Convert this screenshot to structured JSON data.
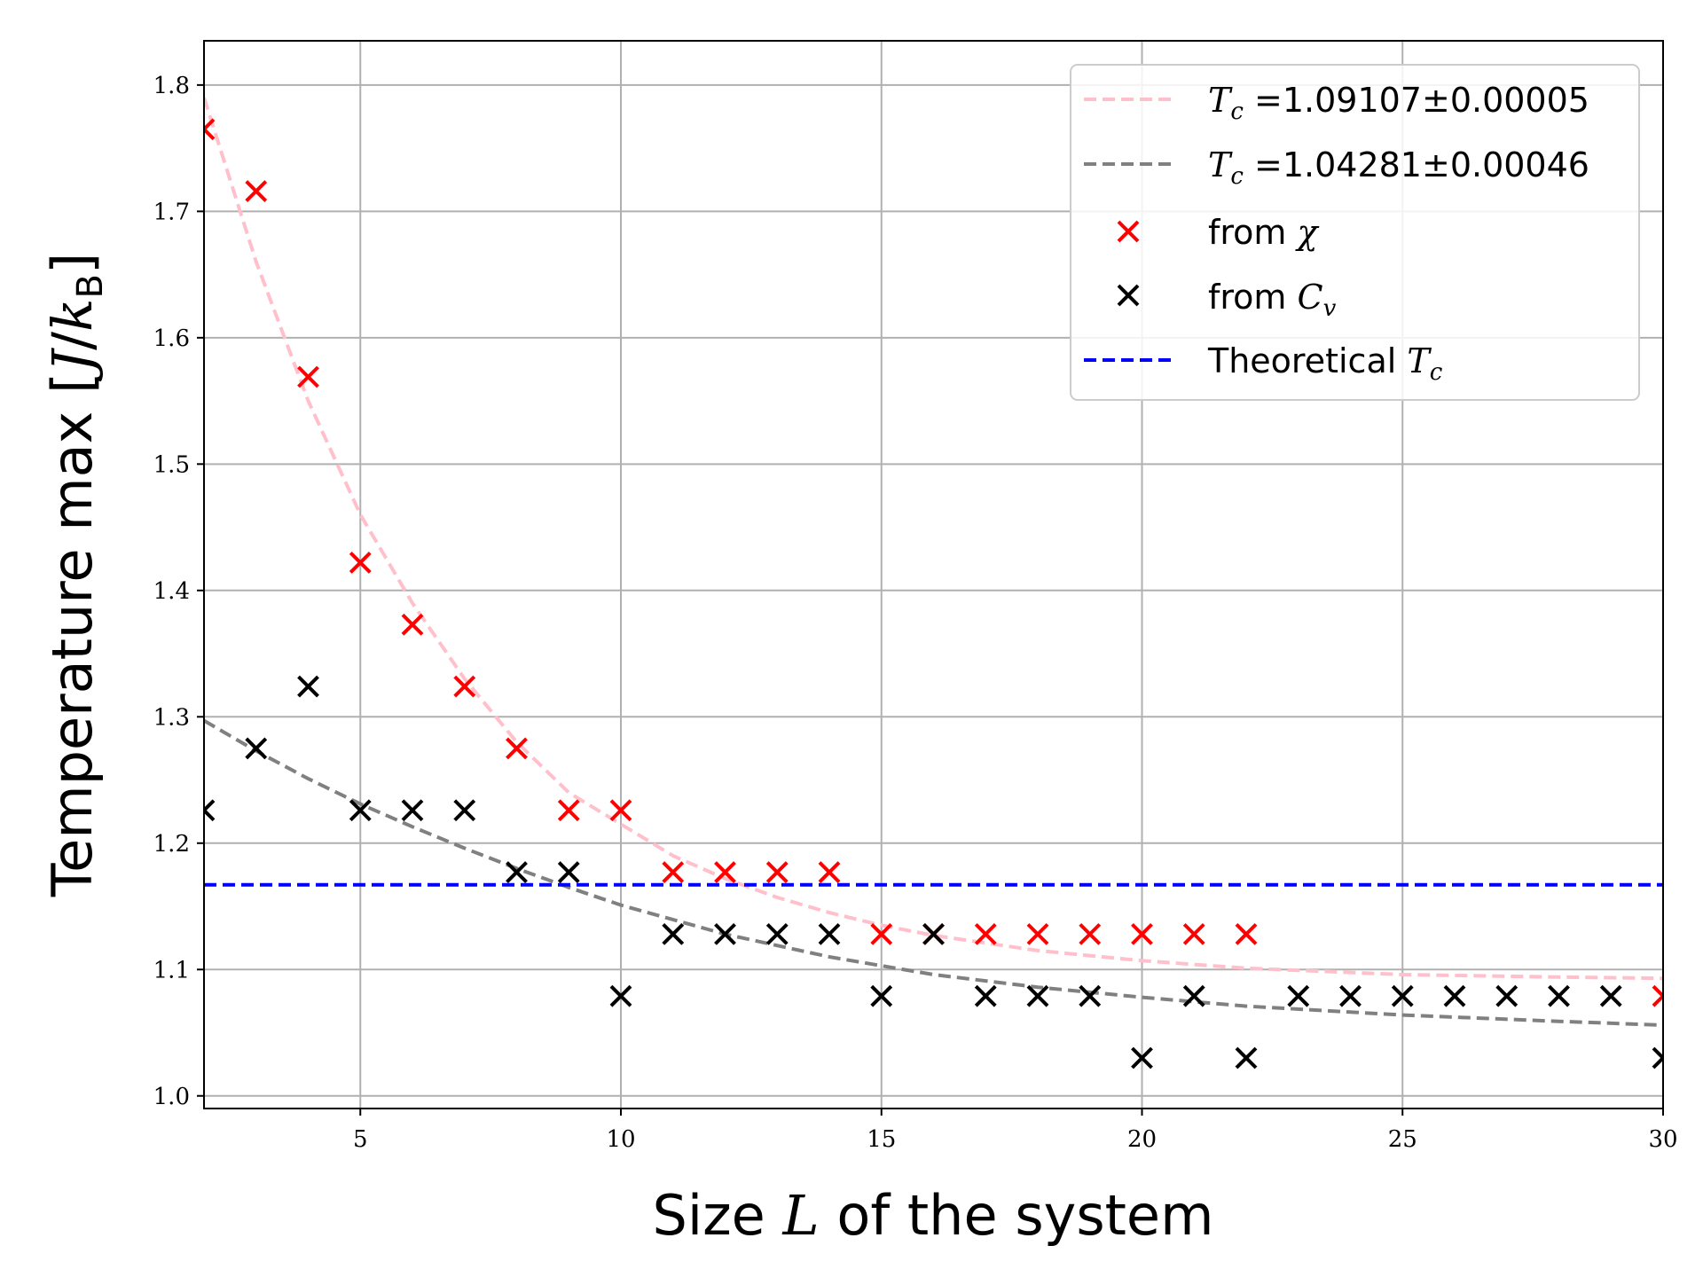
{
  "chart_data": {
    "type": "scatter",
    "xlabel": "Size L of the system",
    "ylabel": "Temperature max [J/k_B]",
    "xlim": [
      2,
      30
    ],
    "ylim": [
      0.99,
      1.835
    ],
    "grid": true,
    "legend_position": "top-right",
    "xticks": [
      5,
      10,
      15,
      20,
      25,
      30
    ],
    "yticks": [
      1.0,
      1.1,
      1.2,
      1.3,
      1.4,
      1.5,
      1.6,
      1.7,
      1.8
    ],
    "series": [
      {
        "name": "from χ",
        "kind": "scatter",
        "marker": "x",
        "color": "#ff0000",
        "x": [
          2,
          3,
          4,
          5,
          6,
          7,
          8,
          9,
          10,
          11,
          12,
          13,
          14,
          15,
          16,
          17,
          18,
          19,
          20,
          21,
          22,
          30
        ],
        "y": [
          1.765,
          1.716,
          1.569,
          1.422,
          1.373,
          1.324,
          1.275,
          1.226,
          1.226,
          1.177,
          1.177,
          1.177,
          1.177,
          1.128,
          1.128,
          1.128,
          1.128,
          1.128,
          1.128,
          1.128,
          1.128,
          1.079
        ]
      },
      {
        "name": "from C_v",
        "kind": "scatter",
        "marker": "x",
        "color": "#000000",
        "x": [
          2,
          3,
          4,
          5,
          6,
          7,
          8,
          9,
          10,
          11,
          12,
          13,
          14,
          15,
          16,
          17,
          18,
          19,
          20,
          21,
          22,
          23,
          24,
          25,
          26,
          27,
          28,
          29,
          30
        ],
        "y": [
          1.226,
          1.275,
          1.324,
          1.226,
          1.226,
          1.226,
          1.177,
          1.177,
          1.079,
          1.128,
          1.128,
          1.128,
          1.128,
          1.079,
          1.128,
          1.079,
          1.079,
          1.079,
          1.03,
          1.079,
          1.03,
          1.079,
          1.079,
          1.079,
          1.079,
          1.079,
          1.079,
          1.079,
          1.03
        ]
      },
      {
        "name": "T_c =1.09107±0.00005",
        "kind": "line",
        "dash": true,
        "color": "#ffc0cb",
        "x": [
          2,
          3,
          4,
          5,
          6,
          7,
          8,
          9,
          10,
          11,
          12,
          13,
          14,
          15,
          16,
          18,
          20,
          22,
          25,
          28,
          30
        ],
        "y": [
          1.79,
          1.66,
          1.55,
          1.46,
          1.39,
          1.33,
          1.28,
          1.24,
          1.215,
          1.19,
          1.172,
          1.157,
          1.145,
          1.135,
          1.127,
          1.115,
          1.107,
          1.101,
          1.096,
          1.094,
          1.093
        ]
      },
      {
        "name": "T_c =1.04281±0.00046",
        "kind": "line",
        "dash": true,
        "color": "#808080",
        "x": [
          2,
          3,
          4,
          5,
          6,
          7,
          8,
          9,
          10,
          12,
          14,
          16,
          18,
          20,
          22,
          25,
          28,
          30
        ],
        "y": [
          1.297,
          1.273,
          1.251,
          1.231,
          1.213,
          1.196,
          1.18,
          1.165,
          1.151,
          1.128,
          1.11,
          1.096,
          1.086,
          1.078,
          1.071,
          1.064,
          1.059,
          1.056
        ]
      },
      {
        "name": "Theoretical T_c",
        "kind": "hline",
        "dash": true,
        "color": "#0000ff",
        "y": 1.167
      }
    ]
  }
}
